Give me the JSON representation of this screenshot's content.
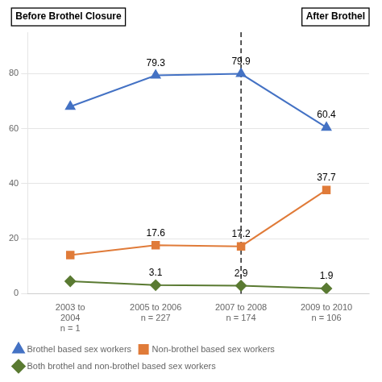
{
  "chart_data": {
    "type": "line",
    "categories": [
      "2003 to\n2004\nn = 1",
      "2005 to 2006\nn = 227",
      "2007 to 2008\nn = 174",
      "2009 to 2010\nn = 106"
    ],
    "series": [
      {
        "name": "Brothel based sex workers",
        "color": "#4472C4",
        "marker": "triangle",
        "values": [
          68.0,
          79.3,
          79.9,
          60.4
        ],
        "value_labels": [
          null,
          "79.3",
          "79.9",
          "60.4"
        ]
      },
      {
        "name": "Non-brothel based sex workers",
        "color": "#E07B39",
        "marker": "square",
        "values": [
          14.0,
          17.6,
          17.2,
          37.7
        ],
        "value_labels": [
          null,
          "17.6",
          "17.2",
          "37.7"
        ]
      },
      {
        "name": "Both brothel and non-brothel based sex workers",
        "color": "#5A7A32",
        "marker": "diamond",
        "values": [
          4.5,
          3.1,
          2.9,
          1.9
        ],
        "value_labels": [
          null,
          "3.1",
          "2.9",
          "1.9"
        ]
      }
    ],
    "data_labels": true,
    "vline": {
      "category": "2007 to 2008\nn = 174",
      "line_style": "dashed"
    },
    "annotations": [
      "Before Brothel Closure",
      "After Brothel"
    ],
    "ylim": [
      0,
      95
    ],
    "yticks": [
      0,
      20,
      40,
      60,
      80
    ],
    "grid": true,
    "legend": "lower left"
  }
}
